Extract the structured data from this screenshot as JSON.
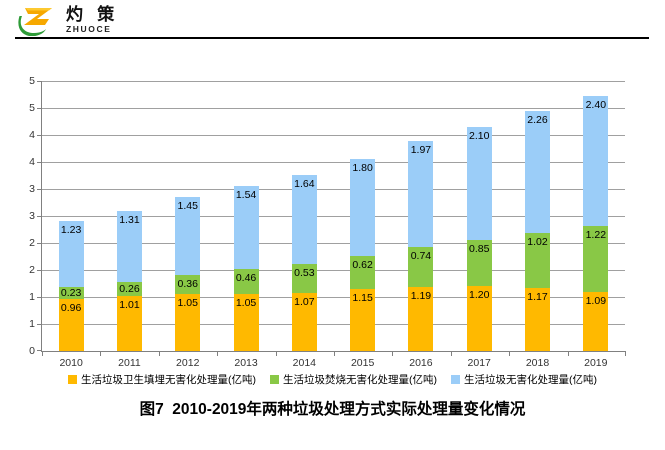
{
  "logo": {
    "name_cn": "灼 策",
    "name_en": "ZHUOCE"
  },
  "chart_data": {
    "type": "bar",
    "stacked": true,
    "title": "",
    "xlabel": "",
    "ylabel": "",
    "categories": [
      "2010",
      "2011",
      "2012",
      "2013",
      "2014",
      "2015",
      "2016",
      "2017",
      "2018",
      "2019"
    ],
    "series": [
      {
        "name": "生活垃圾卫生填埋无害化处理量(亿吨)",
        "color": "#FFB900",
        "values": [
          0.96,
          1.01,
          1.05,
          1.05,
          1.07,
          1.15,
          1.19,
          1.2,
          1.17,
          1.09
        ]
      },
      {
        "name": "生活垃圾焚烧无害化处理量(亿吨)",
        "color": "#89C846",
        "values": [
          0.23,
          0.26,
          0.36,
          0.46,
          0.53,
          0.62,
          0.74,
          0.85,
          1.02,
          1.22
        ]
      },
      {
        "name": "生活垃圾无害化处理量(亿吨)",
        "color": "#9BCDF8",
        "values": [
          1.23,
          1.31,
          1.45,
          1.54,
          1.64,
          1.8,
          1.97,
          2.1,
          2.26,
          2.4
        ]
      }
    ],
    "ylim": [
      0,
      5
    ],
    "ytick_step": 0.5,
    "ytick_labels_bottom_to_top": [
      "0",
      "1",
      "1",
      "2",
      "2",
      "3",
      "3",
      "4",
      "4",
      "5",
      "5"
    ],
    "grid": true,
    "legend_position": "bottom",
    "value_label_format": "0.00"
  },
  "caption": "图7  2010-2019年两种垃圾处理方式实际处理量变化情况",
  "colors": {
    "axis": "#808080",
    "gridline": "#A0A0A0",
    "tick_text": "#333333",
    "value_text": "#000000"
  }
}
